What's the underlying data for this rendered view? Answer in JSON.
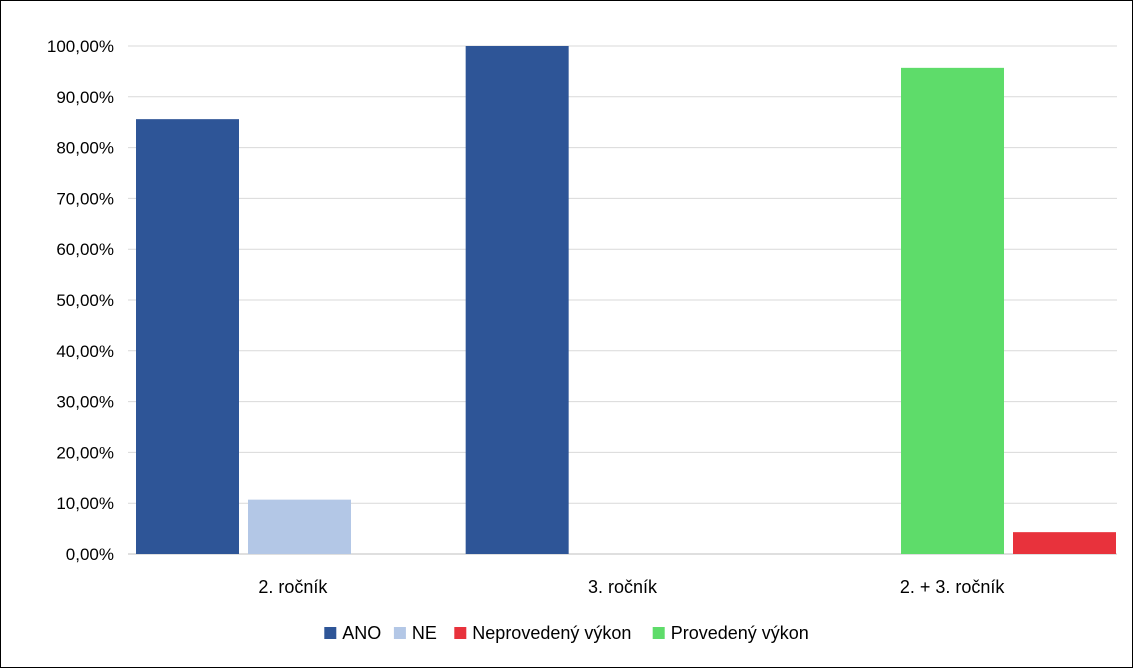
{
  "chart_data": {
    "type": "bar",
    "categories": [
      "2. ročník",
      "3. ročník",
      "2. + 3. ročník"
    ],
    "series": [
      {
        "name": "ANO",
        "color": "#2e5597",
        "values": [
          85.6,
          100.0,
          null
        ]
      },
      {
        "name": "NE",
        "color": "#b3c7e6",
        "values": [
          10.7,
          0,
          null
        ]
      },
      {
        "name": "Neprovedený výkon",
        "color": "#e8323c",
        "values": [
          null,
          null,
          4.3
        ]
      },
      {
        "name": "Provedený výkon",
        "color": "#5edc6a",
        "values": [
          null,
          null,
          95.7
        ]
      }
    ],
    "ylim": [
      0,
      100
    ],
    "y_ticks": [
      "0,00%",
      "10,00%",
      "20,00%",
      "30,00%",
      "40,00%",
      "50,00%",
      "60,00%",
      "70,00%",
      "80,00%",
      "90,00%",
      "100,00%"
    ],
    "grid": true,
    "legend_position": "bottom"
  }
}
